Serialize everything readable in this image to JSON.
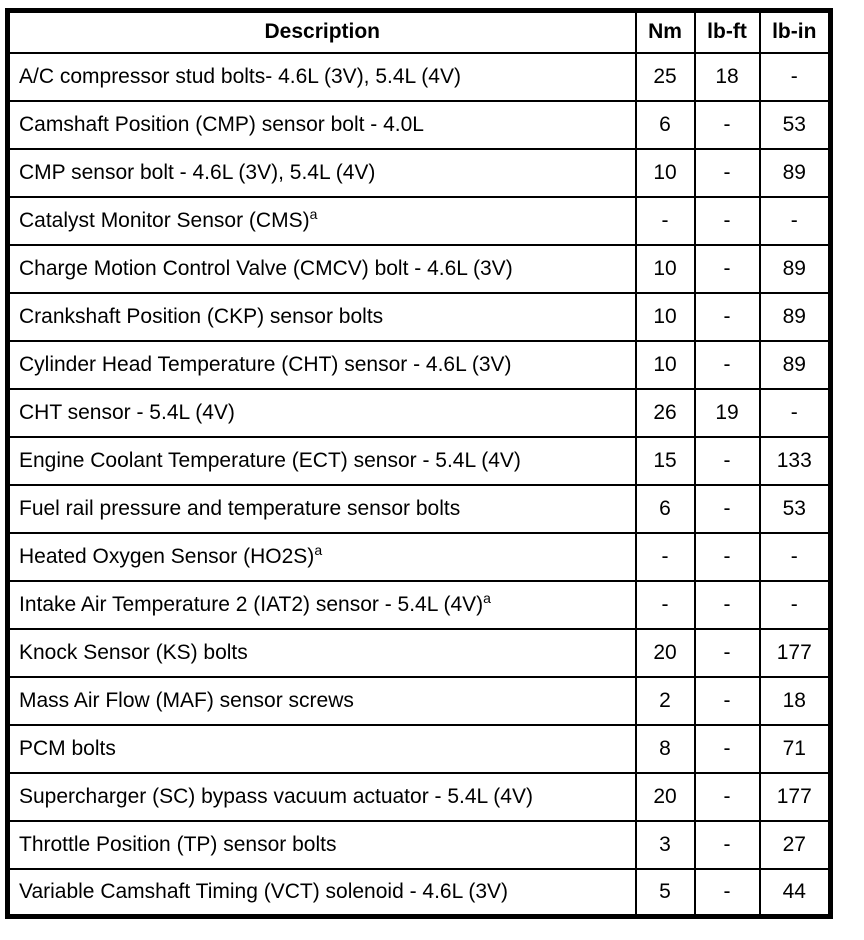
{
  "table": {
    "headers": {
      "description": "Description",
      "nm": "Nm",
      "lbft": "lb-ft",
      "lbin": "lb-in"
    },
    "rows": [
      {
        "description": "A/C compressor stud bolts- 4.6L (3V), 5.4L (4V)",
        "sup": "",
        "nm": "25",
        "lbft": "18",
        "lbin": "-"
      },
      {
        "description": "Camshaft Position (CMP) sensor bolt - 4.0L",
        "sup": "",
        "nm": "6",
        "lbft": "-",
        "lbin": "53"
      },
      {
        "description": "CMP sensor bolt - 4.6L (3V), 5.4L (4V)",
        "sup": "",
        "nm": "10",
        "lbft": "-",
        "lbin": "89"
      },
      {
        "description": "Catalyst Monitor Sensor (CMS)",
        "sup": "a",
        "nm": "-",
        "lbft": "-",
        "lbin": "-"
      },
      {
        "description": "Charge Motion Control Valve (CMCV) bolt - 4.6L (3V)",
        "sup": "",
        "nm": "10",
        "lbft": "-",
        "lbin": "89"
      },
      {
        "description": "Crankshaft Position (CKP) sensor bolts",
        "sup": "",
        "nm": "10",
        "lbft": "-",
        "lbin": "89"
      },
      {
        "description": "Cylinder Head Temperature (CHT) sensor - 4.6L (3V)",
        "sup": "",
        "nm": "10",
        "lbft": "-",
        "lbin": "89"
      },
      {
        "description": "CHT sensor - 5.4L (4V)",
        "sup": "",
        "nm": "26",
        "lbft": "19",
        "lbin": "-"
      },
      {
        "description": "Engine Coolant Temperature (ECT) sensor - 5.4L (4V)",
        "sup": "",
        "nm": "15",
        "lbft": "-",
        "lbin": "133"
      },
      {
        "description": "Fuel rail pressure and temperature sensor bolts",
        "sup": "",
        "nm": "6",
        "lbft": "-",
        "lbin": "53"
      },
      {
        "description": "Heated Oxygen Sensor (HO2S)",
        "sup": "a",
        "nm": "-",
        "lbft": "-",
        "lbin": "-"
      },
      {
        "description": "Intake Air Temperature 2 (IAT2) sensor - 5.4L (4V)",
        "sup": "a",
        "nm": "-",
        "lbft": "-",
        "lbin": "-"
      },
      {
        "description": "Knock Sensor (KS) bolts",
        "sup": "",
        "nm": "20",
        "lbft": "-",
        "lbin": "177"
      },
      {
        "description": "Mass Air Flow (MAF) sensor screws",
        "sup": "",
        "nm": "2",
        "lbft": "-",
        "lbin": "18"
      },
      {
        "description": "PCM bolts",
        "sup": "",
        "nm": "8",
        "lbft": "-",
        "lbin": "71"
      },
      {
        "description": "Supercharger (SC) bypass vacuum actuator - 5.4L (4V)",
        "sup": "",
        "nm": "20",
        "lbft": "-",
        "lbin": "177"
      },
      {
        "description": "Throttle Position (TP) sensor bolts",
        "sup": "",
        "nm": "3",
        "lbft": "-",
        "lbin": "27"
      },
      {
        "description": "Variable Camshaft Timing (VCT) solenoid - 4.6L (3V)",
        "sup": "",
        "nm": "5",
        "lbft": "-",
        "lbin": "44"
      }
    ]
  },
  "colors": {
    "border": "#000000",
    "background": "#ffffff",
    "text": "#000000"
  }
}
